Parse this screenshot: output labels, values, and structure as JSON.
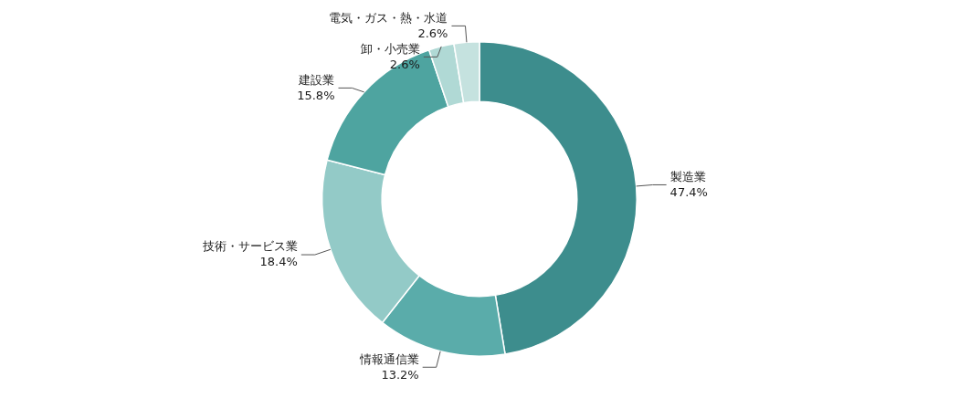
{
  "chart_data": {
    "type": "doughnut",
    "categories": [
      "製造業",
      "情報通信業",
      "技術・サービス業",
      "建設業",
      "卸・小売業",
      "電気・ガス・熱・水道"
    ],
    "values": [
      47.4,
      13.2,
      18.4,
      15.8,
      2.6,
      2.6
    ],
    "colors": [
      "#3d8d8d",
      "#5aacaa",
      "#93cac7",
      "#4ea4a0",
      "#b0d9d5",
      "#c5e2df"
    ],
    "data_labels": true,
    "value_labels": [
      "47.4%",
      "13.2%",
      "18.4%",
      "15.8%",
      "2.6%",
      "2.6%"
    ]
  }
}
